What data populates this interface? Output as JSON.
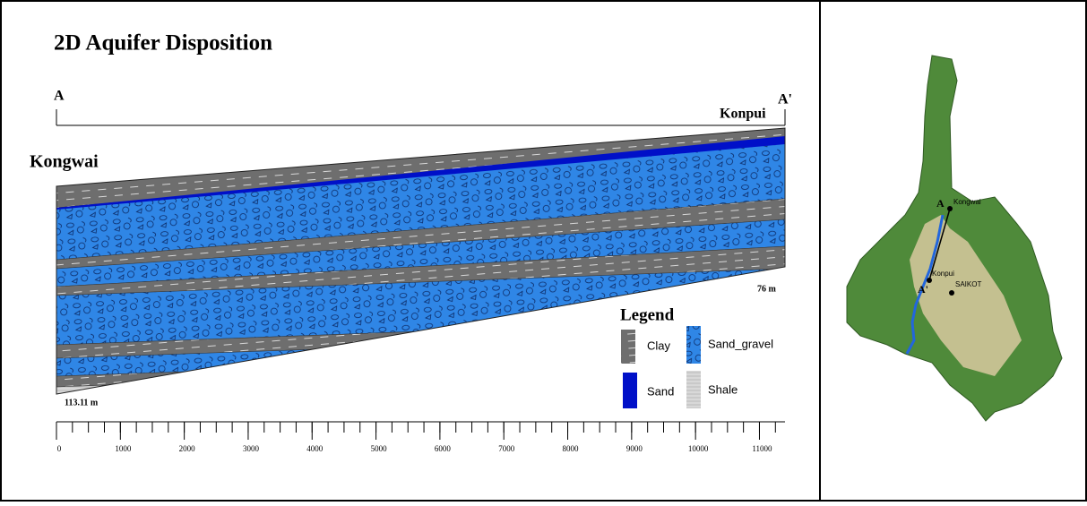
{
  "title": "2D Aquifer Disposition",
  "section": {
    "start_label": "A",
    "end_label": "A'",
    "left_site": "Kongwai",
    "right_site": "Konpui",
    "right_depth": "76 m",
    "left_depth": "113.11 m"
  },
  "legend": {
    "title": "Legend",
    "items": [
      "Clay",
      "Sand_gravel",
      "Sand",
      "Shale"
    ]
  },
  "scale": {
    "ticks": [
      0,
      1000,
      2000,
      3000,
      4000,
      5000,
      6000,
      7000,
      8000,
      9000,
      10000,
      11000
    ],
    "range": [
      0,
      11400
    ]
  },
  "map": {
    "start_label": "A",
    "end_label": "A'",
    "places": [
      "Kongwai",
      "Konpui",
      "SAIKOT"
    ]
  }
}
